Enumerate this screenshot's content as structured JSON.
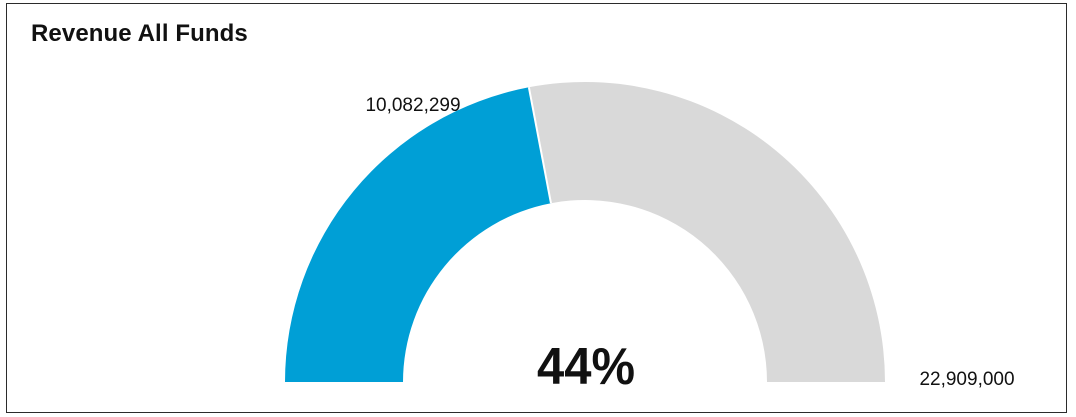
{
  "title": "Revenue All Funds",
  "chart_data": {
    "type": "gauge",
    "title": "Revenue All Funds",
    "value": 10082299,
    "target": 22909000,
    "min": 0,
    "percent_label": "44%",
    "value_label": "10,082,299",
    "target_label": "22,909,000",
    "colors": {
      "fill": "#009fd6",
      "track": "#d9d9d9",
      "separator": "#ffffff",
      "text": "#111111"
    }
  }
}
